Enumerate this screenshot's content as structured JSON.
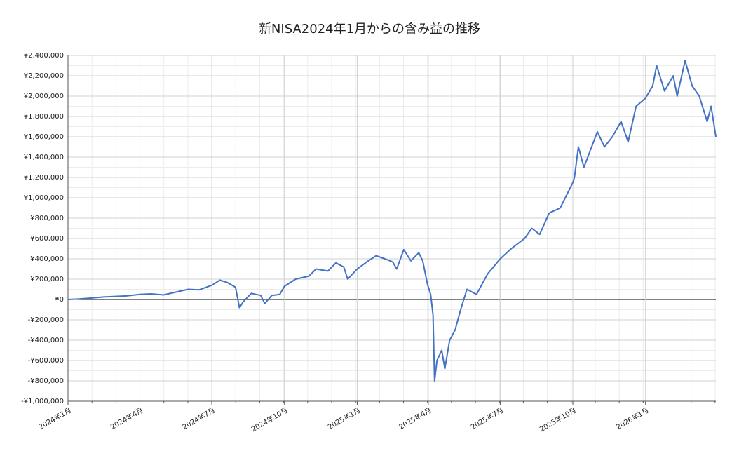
{
  "chart_data": {
    "type": "line",
    "title": "新NISA2024年1月からの含み益の推移",
    "x": [
      "2024-01-01",
      "2024-01-15",
      "2024-02-01",
      "2024-02-15",
      "2024-03-01",
      "2024-03-15",
      "2024-04-01",
      "2024-04-15",
      "2024-05-01",
      "2024-05-15",
      "2024-06-01",
      "2024-06-15",
      "2024-07-01",
      "2024-07-11",
      "2024-07-20",
      "2024-07-31",
      "2024-08-05",
      "2024-08-10",
      "2024-08-20",
      "2024-09-01",
      "2024-09-06",
      "2024-09-15",
      "2024-09-25",
      "2024-10-01",
      "2024-10-15",
      "2024-11-01",
      "2024-11-10",
      "2024-11-25",
      "2024-12-05",
      "2024-12-15",
      "2024-12-20",
      "2025-01-01",
      "2025-01-15",
      "2025-01-25",
      "2025-02-05",
      "2025-02-15",
      "2025-02-20",
      "2025-03-01",
      "2025-03-10",
      "2025-03-20",
      "2025-03-25",
      "2025-03-31",
      "2025-04-04",
      "2025-04-07",
      "2025-04-09",
      "2025-04-12",
      "2025-04-18",
      "2025-04-22",
      "2025-04-28",
      "2025-05-05",
      "2025-05-12",
      "2025-05-20",
      "2025-06-01",
      "2025-06-15",
      "2025-07-01",
      "2025-07-15",
      "2025-08-01",
      "2025-08-10",
      "2025-08-20",
      "2025-09-01",
      "2025-09-15",
      "2025-10-01",
      "2025-10-03",
      "2025-10-08",
      "2025-10-15",
      "2025-11-01",
      "2025-11-10",
      "2025-11-20",
      "2025-12-01",
      "2025-12-10",
      "2025-12-20",
      "2026-01-01",
      "2026-01-10",
      "2026-01-15",
      "2026-01-25",
      "2026-02-05",
      "2026-02-10",
      "2026-02-20",
      "2026-03-01",
      "2026-03-10",
      "2026-03-20",
      "2026-03-25",
      "2026-03-31"
    ],
    "series": [
      {
        "name": "含み益",
        "color": "#4472c4",
        "values": [
          0,
          5000,
          15000,
          25000,
          30000,
          35000,
          50000,
          55000,
          45000,
          70000,
          100000,
          95000,
          140000,
          190000,
          170000,
          120000,
          -80000,
          -20000,
          60000,
          40000,
          -40000,
          40000,
          50000,
          130000,
          200000,
          230000,
          300000,
          280000,
          360000,
          320000,
          200000,
          300000,
          380000,
          430000,
          400000,
          370000,
          300000,
          490000,
          380000,
          460000,
          380000,
          150000,
          50000,
          -150000,
          -800000,
          -600000,
          -500000,
          -680000,
          -400000,
          -300000,
          -100000,
          100000,
          50000,
          250000,
          400000,
          500000,
          600000,
          700000,
          640000,
          850000,
          900000,
          1150000,
          1200000,
          1500000,
          1300000,
          1650000,
          1500000,
          1600000,
          1750000,
          1550000,
          1900000,
          1980000,
          2100000,
          2300000,
          2050000,
          2200000,
          2000000,
          2350000,
          2100000,
          2000000,
          1750000,
          1900000,
          1600000
        ]
      }
    ],
    "xlim": [
      "2024-01-01",
      "2026-03-31"
    ],
    "xticks": [
      {
        "value": "2024-01-01",
        "label": "2024年1月"
      },
      {
        "value": "2024-04-01",
        "label": "2024年4月"
      },
      {
        "value": "2024-07-01",
        "label": "2024年7月"
      },
      {
        "value": "2024-10-01",
        "label": "2024年10月"
      },
      {
        "value": "2025-01-01",
        "label": "2025年1月"
      },
      {
        "value": "2025-04-01",
        "label": "2025年4月"
      },
      {
        "value": "2025-07-01",
        "label": "2025年7月"
      },
      {
        "value": "2025-10-01",
        "label": "2025年10月"
      },
      {
        "value": "2026-01-01",
        "label": "2026年1月"
      }
    ],
    "ylim": [
      -1000000,
      2400000
    ],
    "yticks": [
      {
        "value": -1000000,
        "label": "-¥1,000,000"
      },
      {
        "value": -800000,
        "label": "-¥800,000"
      },
      {
        "value": -600000,
        "label": "-¥600,000"
      },
      {
        "value": -400000,
        "label": "-¥400,000"
      },
      {
        "value": -200000,
        "label": "-¥200,000"
      },
      {
        "value": 0,
        "label": "¥0"
      },
      {
        "value": 200000,
        "label": "¥200,000"
      },
      {
        "value": 400000,
        "label": "¥400,000"
      },
      {
        "value": 600000,
        "label": "¥600,000"
      },
      {
        "value": 800000,
        "label": "¥800,000"
      },
      {
        "value": 1000000,
        "label": "¥1,000,000"
      },
      {
        "value": 1200000,
        "label": "¥1,200,000"
      },
      {
        "value": 1400000,
        "label": "¥1,400,000"
      },
      {
        "value": 1600000,
        "label": "¥1,600,000"
      },
      {
        "value": 1800000,
        "label": "¥1,800,000"
      },
      {
        "value": 2000000,
        "label": "¥2,000,000"
      },
      {
        "value": 2200000,
        "label": "¥2,200,000"
      },
      {
        "value": 2400000,
        "label": "¥2,400,000"
      }
    ],
    "grid": true
  }
}
